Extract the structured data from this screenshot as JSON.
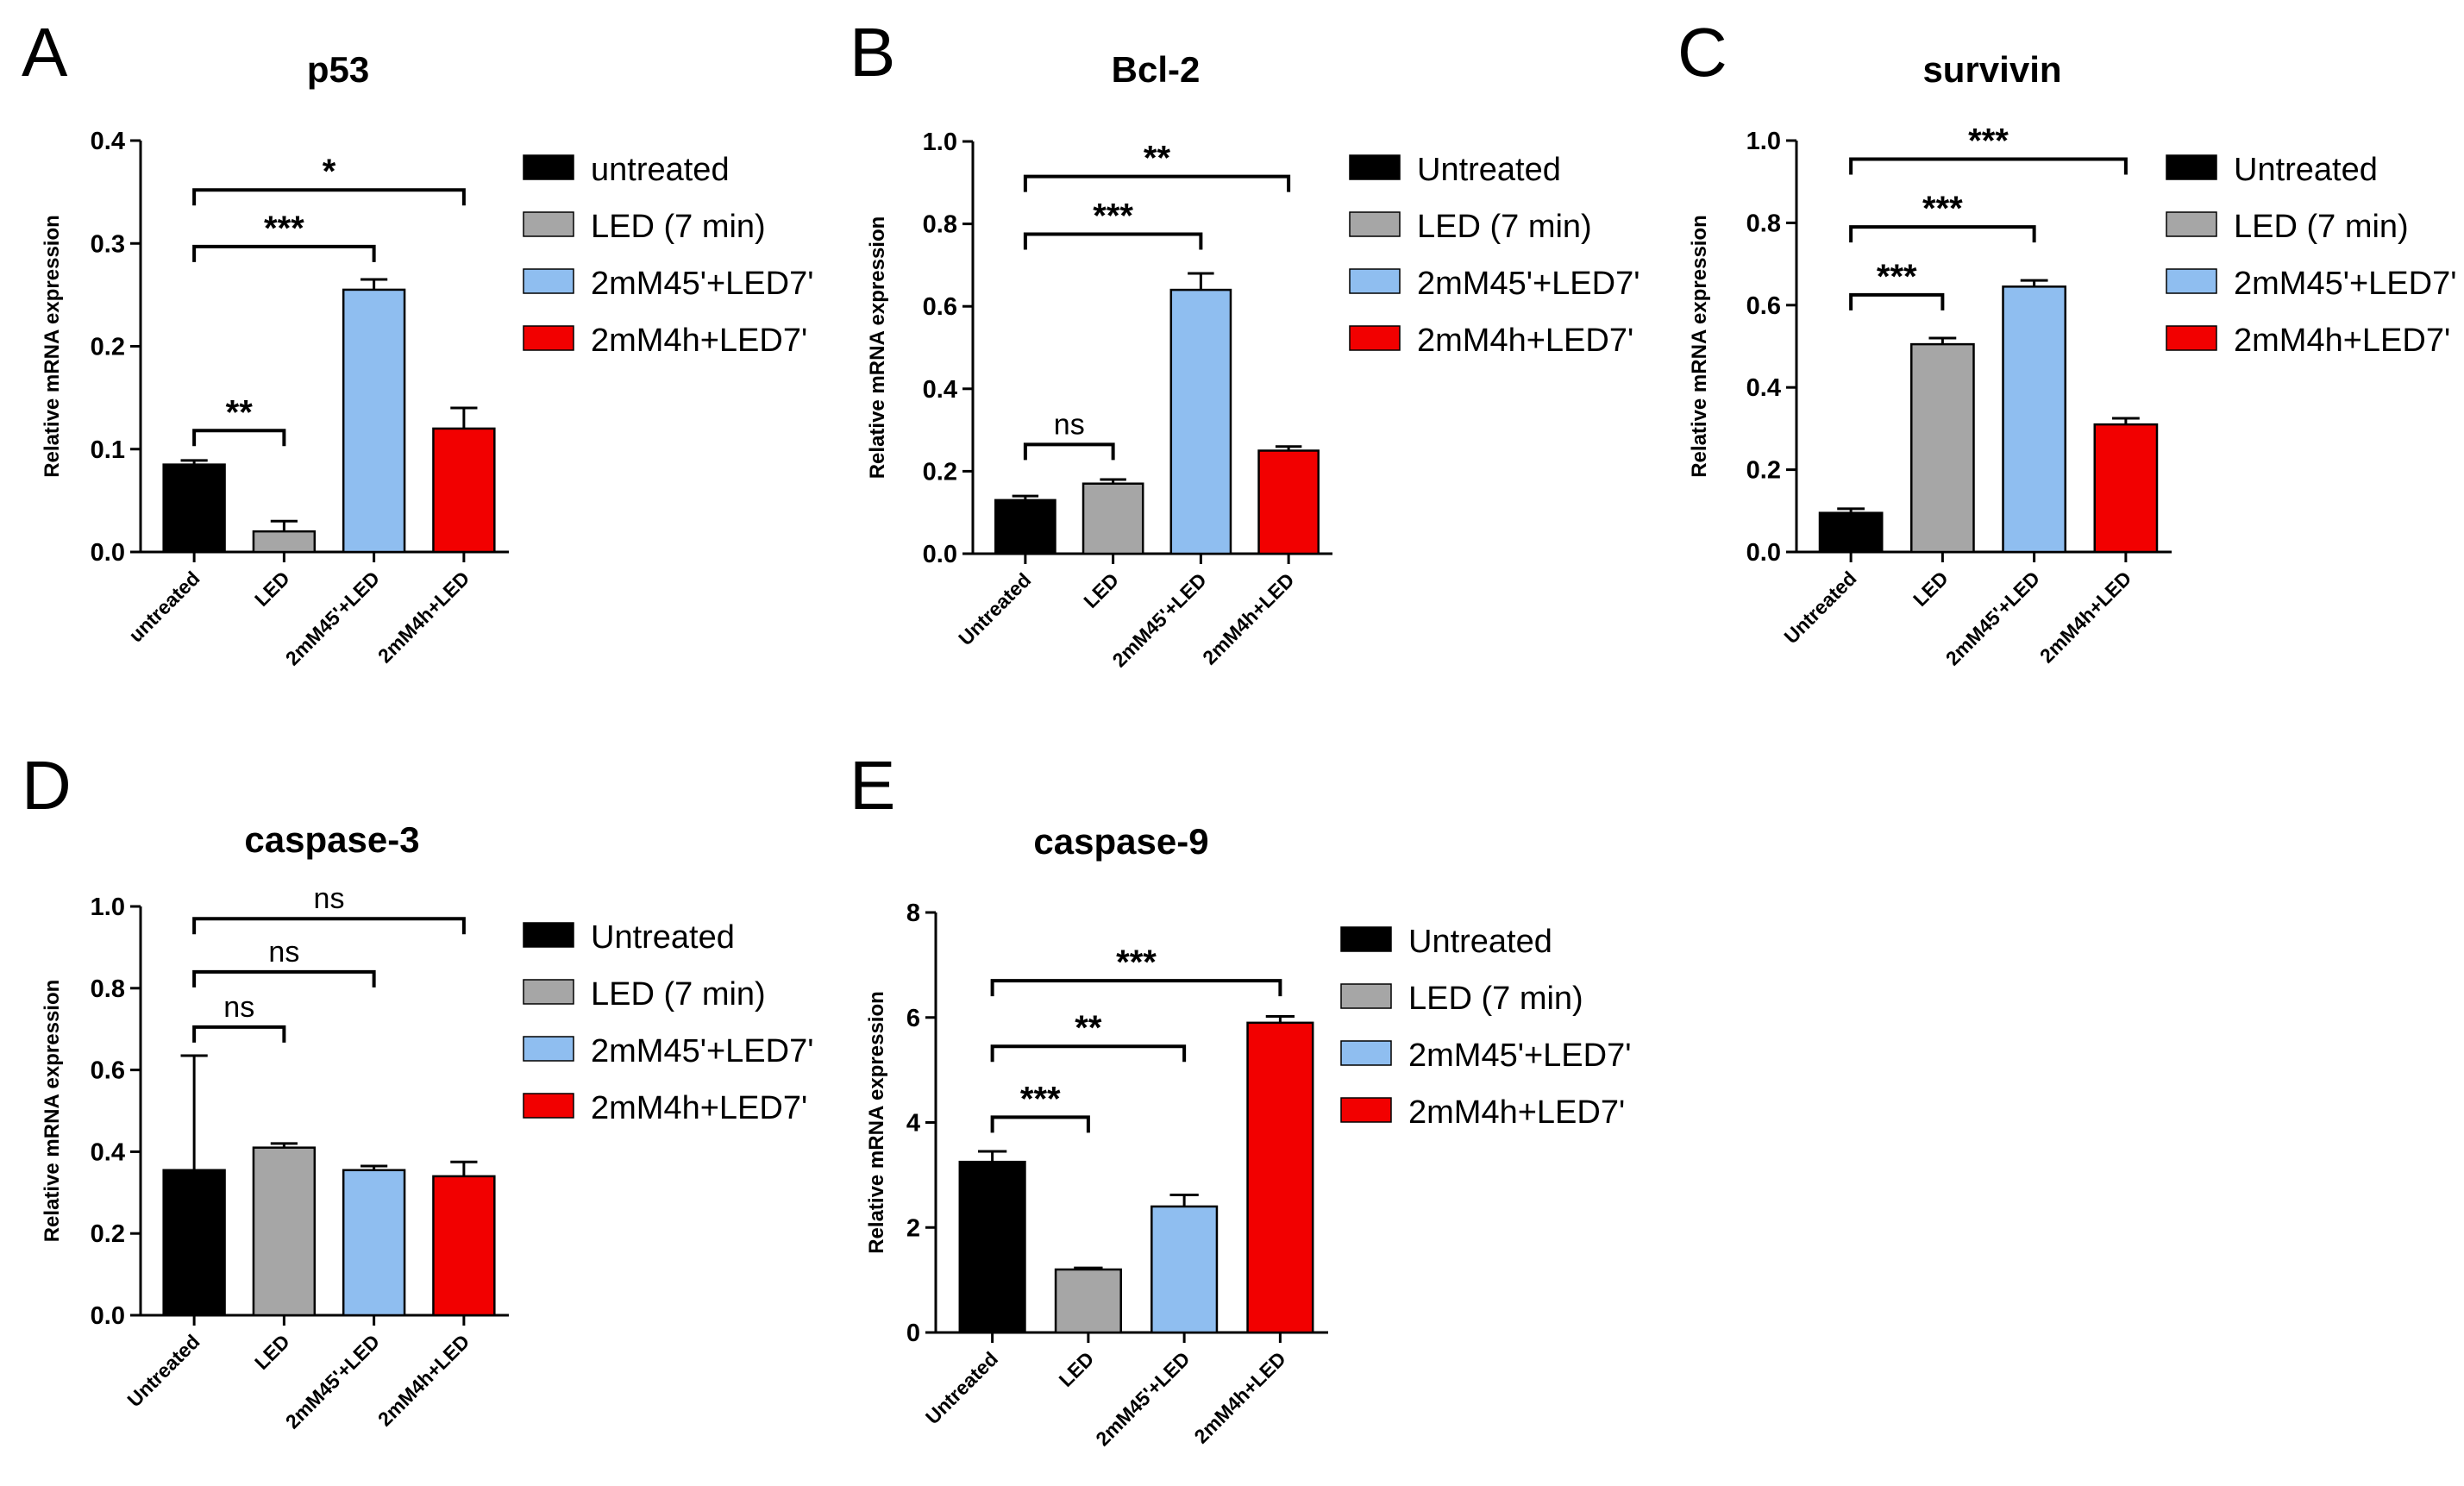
{
  "colors": {
    "untreated": "#000000",
    "led": "#a6a6a6",
    "m45": "#8fbef0",
    "m4h": "#f20000"
  },
  "chart_data": [
    {
      "panel": "A",
      "type": "bar",
      "title": "p53",
      "ylabel": "Relative mRNA expression",
      "ylim": [
        0,
        0.4
      ],
      "yticks": [
        "0.0",
        "0.1",
        "0.2",
        "0.3",
        "0.4"
      ],
      "categories": [
        "untreated",
        "LED",
        "2mM45'+LED",
        "2mM4h+LED"
      ],
      "values": [
        0.085,
        0.02,
        0.255,
        0.12
      ],
      "errors": [
        0.004,
        0.01,
        0.01,
        0.02
      ],
      "legend": [
        "untreated",
        "LED (7 min)",
        "2mM45'+LED7'",
        "2mM4h+LED7'"
      ],
      "comparisons": [
        {
          "from": 0,
          "to": 1,
          "y": 0.118,
          "label": "**"
        },
        {
          "from": 0,
          "to": 2,
          "y": 0.297,
          "label": "***"
        },
        {
          "from": 0,
          "to": 3,
          "y": 0.352,
          "label": "*"
        }
      ]
    },
    {
      "panel": "B",
      "type": "bar",
      "title": "Bcl-2",
      "ylabel": "Relative mRNA expression",
      "ylim": [
        0,
        1.0
      ],
      "yticks": [
        "0.0",
        "0.2",
        "0.4",
        "0.6",
        "0.8",
        "1.0"
      ],
      "categories": [
        "Untreated",
        "LED",
        "2mM45'+LED",
        "2mM4h+LED"
      ],
      "values": [
        0.13,
        0.17,
        0.64,
        0.25
      ],
      "errors": [
        0.01,
        0.01,
        0.04,
        0.01
      ],
      "legend": [
        "Untreated",
        "LED (7 min)",
        "2mM45'+LED7'",
        "2mM4h+LED7'"
      ],
      "comparisons": [
        {
          "from": 0,
          "to": 1,
          "y": 0.265,
          "label": "ns"
        },
        {
          "from": 0,
          "to": 2,
          "y": 0.775,
          "label": "***"
        },
        {
          "from": 0,
          "to": 3,
          "y": 0.915,
          "label": "**"
        }
      ]
    },
    {
      "panel": "C",
      "type": "bar",
      "title": "survivin",
      "ylabel": "Relative mRNA expression",
      "ylim": [
        0,
        1.0
      ],
      "yticks": [
        "0.0",
        "0.2",
        "0.4",
        "0.6",
        "0.8",
        "1.0"
      ],
      "categories": [
        "Untreated",
        "LED",
        "2mM45'+LED",
        "2mM4h+LED"
      ],
      "values": [
        0.095,
        0.505,
        0.645,
        0.31
      ],
      "errors": [
        0.01,
        0.015,
        0.015,
        0.015
      ],
      "legend": [
        "Untreated",
        "LED (7 min)",
        "2mM45'+LED7'",
        "2mM4h+LED7'"
      ],
      "comparisons": [
        {
          "from": 0,
          "to": 1,
          "y": 0.625,
          "label": "***"
        },
        {
          "from": 0,
          "to": 2,
          "y": 0.79,
          "label": "***"
        },
        {
          "from": 0,
          "to": 3,
          "y": 0.955,
          "label": "***"
        }
      ]
    },
    {
      "panel": "D",
      "type": "bar",
      "title": "caspase-3",
      "ylabel": "Relative mRNA expression",
      "ylim": [
        0,
        1.0
      ],
      "yticks": [
        "0.0",
        "0.2",
        "0.4",
        "0.6",
        "0.8",
        "1.0"
      ],
      "categories": [
        "Untreated",
        "LED",
        "2mM45'+LED",
        "2mM4h+LED"
      ],
      "values": [
        0.355,
        0.41,
        0.355,
        0.34
      ],
      "errors": [
        0.28,
        0.01,
        0.01,
        0.035
      ],
      "legend": [
        "Untreated",
        "LED (7 min)",
        "2mM45'+LED7'",
        "2mM4h+LED7'"
      ],
      "comparisons": [
        {
          "from": 0,
          "to": 1,
          "y": 0.705,
          "label": "ns"
        },
        {
          "from": 0,
          "to": 2,
          "y": 0.84,
          "label": "ns"
        },
        {
          "from": 0,
          "to": 3,
          "y": 0.97,
          "label": "ns"
        }
      ]
    },
    {
      "panel": "E",
      "type": "bar",
      "title": "caspase-9",
      "ylabel": "Relative mRNA expression",
      "ylim": [
        0,
        8
      ],
      "yticks": [
        "0",
        "2",
        "4",
        "6",
        "8"
      ],
      "categories": [
        "Untreated",
        "LED",
        "2mM45'+LED",
        "2mM4h+LED"
      ],
      "values": [
        3.25,
        1.2,
        2.4,
        5.9
      ],
      "errors": [
        0.2,
        0.03,
        0.22,
        0.12
      ],
      "legend": [
        "Untreated",
        "LED (7 min)",
        "2mM45'+LED7'",
        "2mM4h+LED7'"
      ],
      "comparisons": [
        {
          "from": 0,
          "to": 1,
          "y": 4.1,
          "label": "***"
        },
        {
          "from": 0,
          "to": 2,
          "y": 5.45,
          "label": "**"
        },
        {
          "from": 0,
          "to": 3,
          "y": 6.7,
          "label": "***"
        }
      ]
    }
  ]
}
